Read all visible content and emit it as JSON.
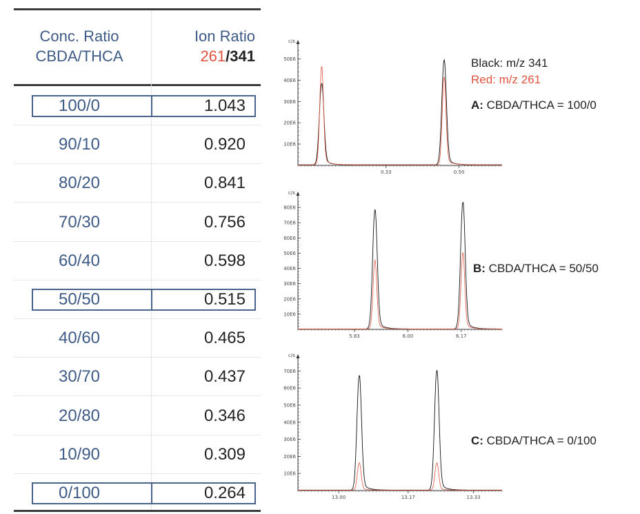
{
  "table": {
    "header": {
      "conc_line1": "Conc. Ratio",
      "conc_line2": "CBDA/THCA",
      "ion_line1": "Ion Ratio",
      "ion_red": "261",
      "ion_slash": "/",
      "ion_black": "341"
    },
    "rows": [
      {
        "conc": "100/0",
        "ion": "1.043",
        "boxed": true
      },
      {
        "conc": "90/10",
        "ion": "0.920",
        "boxed": false
      },
      {
        "conc": "80/20",
        "ion": "0.841",
        "boxed": false
      },
      {
        "conc": "70/30",
        "ion": "0.756",
        "boxed": false
      },
      {
        "conc": "60/40",
        "ion": "0.598",
        "boxed": false
      },
      {
        "conc": "50/50",
        "ion": "0.515",
        "boxed": true
      },
      {
        "conc": "40/60",
        "ion": "0.465",
        "boxed": false
      },
      {
        "conc": "30/70",
        "ion": "0.437",
        "boxed": false
      },
      {
        "conc": "20/80",
        "ion": "0.346",
        "boxed": false
      },
      {
        "conc": "10/90",
        "ion": "0.309",
        "boxed": false
      },
      {
        "conc": "0/100",
        "ion": "0.264",
        "boxed": true
      }
    ]
  },
  "legend": {
    "black_label": "Black: m/z 341",
    "red_label": "Red: m/z 261",
    "black_color": "#111111",
    "red_color": "#e0533e"
  },
  "annotations": {
    "a_key": "A:",
    "a_text": " CBDA/THCA = 100/0",
    "b_key": "B:",
    "b_text": " CBDA/THCA = 50/50",
    "c_key": "C:",
    "c_text": " CBDA/THCA = 0/100"
  },
  "chart_data": [
    {
      "type": "line",
      "panel": "A",
      "y_unit": "c/s",
      "ylim": [
        0,
        55
      ],
      "y_ticks": [
        10,
        20,
        30,
        40,
        50
      ],
      "y_tick_labels": [
        "10E6",
        "20E6",
        "30E6",
        "40E6",
        "50E6"
      ],
      "xlim": [
        0.125,
        0.6
      ],
      "x_ticks": [
        0.33,
        0.5
      ],
      "x_tick_labels": [
        "0.33",
        "0.50"
      ],
      "series": [
        {
          "color": "#111111",
          "peaks": [
            {
              "rt": 0.18,
              "height": 38
            },
            {
              "rt": 0.465,
              "height": 49
            }
          ]
        },
        {
          "color": "#e0533e",
          "peaks": [
            {
              "rt": 0.18,
              "height": 46
            },
            {
              "rt": 0.465,
              "height": 41
            }
          ]
        }
      ]
    },
    {
      "type": "line",
      "panel": "B",
      "y_unit": "c/s",
      "ylim": [
        0,
        85
      ],
      "y_ticks": [
        10,
        20,
        30,
        40,
        50,
        60,
        70,
        80
      ],
      "y_tick_labels": [
        "10E6",
        "20E6",
        "30E6",
        "40E6",
        "50E6",
        "60E6",
        "70E6",
        "80E6"
      ],
      "xlim": [
        5.65,
        6.3
      ],
      "x_ticks": [
        5.83,
        6.0,
        6.17
      ],
      "x_tick_labels": [
        "5.83",
        "6.00",
        "6.17"
      ],
      "series": [
        {
          "color": "#111111",
          "peaks": [
            {
              "rt": 5.895,
              "height": 78
            },
            {
              "rt": 6.175,
              "height": 83
            }
          ]
        },
        {
          "color": "#e0533e",
          "peaks": [
            {
              "rt": 5.895,
              "height": 45
            },
            {
              "rt": 6.175,
              "height": 50
            }
          ]
        }
      ]
    },
    {
      "type": "line",
      "panel": "C",
      "y_unit": "c/s",
      "ylim": [
        0,
        75
      ],
      "y_ticks": [
        10,
        20,
        30,
        40,
        50,
        60,
        70
      ],
      "y_tick_labels": [
        "10E6",
        "20E6",
        "30E6",
        "40E6",
        "50E6",
        "60E6",
        "70E6"
      ],
      "xlim": [
        12.9,
        13.4
      ],
      "x_ticks": [
        13.0,
        13.17,
        13.33
      ],
      "x_tick_labels": [
        "13.00",
        "13.17",
        "13.33"
      ],
      "series": [
        {
          "color": "#111111",
          "peaks": [
            {
              "rt": 13.05,
              "height": 67
            },
            {
              "rt": 13.24,
              "height": 70
            }
          ]
        },
        {
          "color": "#e0533e",
          "peaks": [
            {
              "rt": 13.05,
              "height": 16
            },
            {
              "rt": 13.24,
              "height": 16
            }
          ]
        }
      ]
    }
  ]
}
